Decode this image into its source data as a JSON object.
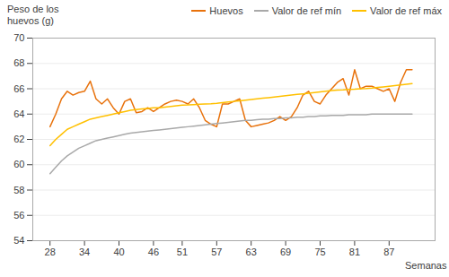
{
  "chart_data": {
    "type": "line",
    "xlabel": "Semanas",
    "ylabel": "Peso de los\nhuevos (g)",
    "x": [
      28,
      29,
      30,
      31,
      32,
      33,
      34,
      35,
      36,
      37,
      38,
      39,
      40,
      41,
      42,
      43,
      44,
      45,
      46,
      47,
      48,
      49,
      50,
      51,
      52,
      53,
      54,
      55,
      56,
      57,
      58,
      59,
      60,
      61,
      62,
      63,
      64,
      65,
      66,
      67,
      68,
      69,
      70,
      71,
      72,
      73,
      74,
      75,
      76,
      77,
      78,
      79,
      80,
      81,
      82,
      83,
      84,
      85,
      86,
      87,
      88,
      89,
      90,
      91
    ],
    "series": [
      {
        "name": "Huevos",
        "color": "#E8720C",
        "values": [
          63.0,
          64.0,
          65.2,
          65.8,
          65.5,
          65.7,
          65.8,
          66.6,
          65.2,
          64.8,
          65.2,
          64.5,
          64.0,
          65.0,
          65.2,
          64.1,
          64.2,
          64.5,
          64.2,
          64.5,
          64.8,
          65.0,
          65.1,
          65.0,
          64.8,
          65.2,
          64.5,
          63.5,
          63.2,
          63.0,
          64.8,
          64.8,
          65.0,
          65.2,
          63.5,
          63.0,
          63.1,
          63.2,
          63.3,
          63.5,
          63.8,
          63.5,
          63.8,
          64.5,
          65.5,
          65.8,
          65.0,
          64.8,
          65.5,
          66.0,
          66.5,
          66.8,
          65.5,
          67.5,
          66.0,
          66.2,
          66.2,
          66.0,
          65.8,
          66.0,
          65.0,
          66.5,
          67.5,
          67.5
        ]
      },
      {
        "name": "Valor de ref mín",
        "color": "#A9A9A9",
        "values": [
          59.3,
          59.8,
          60.3,
          60.7,
          61.0,
          61.3,
          61.5,
          61.7,
          61.9,
          62.0,
          62.1,
          62.2,
          62.3,
          62.4,
          62.5,
          62.55,
          62.6,
          62.65,
          62.7,
          62.75,
          62.8,
          62.85,
          62.9,
          62.95,
          63.0,
          63.05,
          63.1,
          63.15,
          63.2,
          63.25,
          63.3,
          63.35,
          63.4,
          63.45,
          63.5,
          63.5,
          63.55,
          63.6,
          63.6,
          63.65,
          63.65,
          63.7,
          63.7,
          63.75,
          63.75,
          63.8,
          63.8,
          63.85,
          63.85,
          63.9,
          63.9,
          63.9,
          63.95,
          63.95,
          63.95,
          63.95,
          64.0,
          64.0,
          64.0,
          64.0,
          64.0,
          64.0,
          64.0,
          64.0
        ]
      },
      {
        "name": "Valor de ref máx",
        "color": "#FFC000",
        "values": [
          61.5,
          62.0,
          62.4,
          62.8,
          63.0,
          63.2,
          63.4,
          63.6,
          63.7,
          63.8,
          63.9,
          64.0,
          64.1,
          64.2,
          64.3,
          64.35,
          64.4,
          64.45,
          64.5,
          64.5,
          64.55,
          64.6,
          64.65,
          64.7,
          64.72,
          64.75,
          64.78,
          64.8,
          64.82,
          64.85,
          64.9,
          64.95,
          65.0,
          65.05,
          65.1,
          65.15,
          65.2,
          65.25,
          65.3,
          65.35,
          65.4,
          65.45,
          65.5,
          65.55,
          65.6,
          65.65,
          65.7,
          65.75,
          65.8,
          65.85,
          65.9,
          65.92,
          65.95,
          65.97,
          66.0,
          66.02,
          66.05,
          66.1,
          66.15,
          66.2,
          66.25,
          66.3,
          66.35,
          66.4
        ]
      }
    ],
    "xlim": [
      25,
      95
    ],
    "xticks": [
      28,
      34,
      40,
      46,
      51,
      57,
      63,
      69,
      75,
      81,
      87
    ],
    "ylim": [
      54,
      70
    ],
    "yticks": [
      54,
      56,
      58,
      60,
      62,
      64,
      66,
      68,
      70
    ],
    "grid": true,
    "legend": "top"
  }
}
